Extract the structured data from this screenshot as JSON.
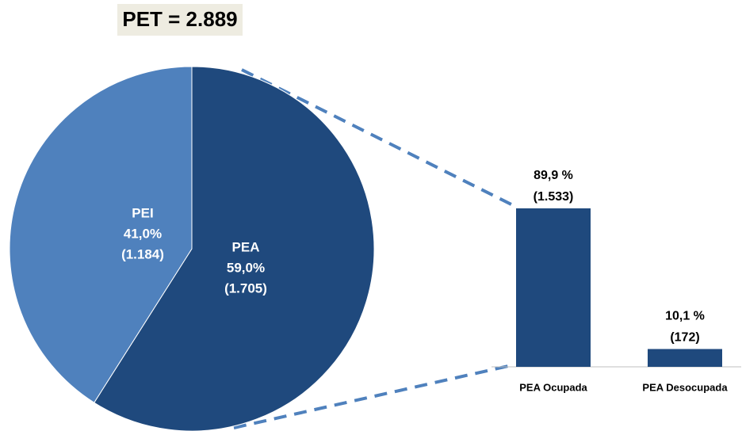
{
  "chart_data": [
    {
      "type": "pie",
      "title": "PET = 2.889",
      "categories": [
        "PEA",
        "PEI"
      ],
      "values": [
        59.0,
        41.0
      ],
      "value_labels": [
        "59,0%",
        "41,0%"
      ],
      "counts": [
        1705,
        1184
      ],
      "count_labels": [
        "(1.705)",
        "(1.184)"
      ],
      "colors": [
        "#1f497d",
        "#4f81bd"
      ]
    },
    {
      "type": "bar",
      "categories": [
        "PEA Ocupada",
        "PEA Desocupada"
      ],
      "values": [
        89.9,
        10.1
      ],
      "value_labels": [
        "89,9 %",
        "10,1 %"
      ],
      "counts": [
        1533,
        172
      ],
      "count_labels": [
        "(1.533)",
        "(172)"
      ],
      "color": "#1f497d"
    }
  ]
}
